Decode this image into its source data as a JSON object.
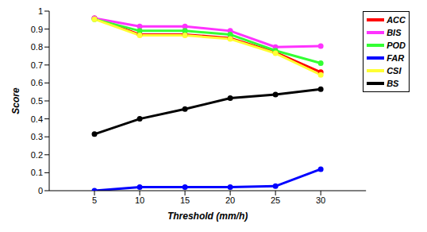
{
  "chart_data": {
    "type": "line",
    "x_label": "Threshold (mm/h)",
    "y_label": "Score",
    "x": [
      5,
      10,
      15,
      20,
      25,
      30
    ],
    "xlim": [
      0,
      35
    ],
    "xticks": [
      5,
      10,
      15,
      20,
      25,
      30
    ],
    "ylim": [
      0,
      1
    ],
    "yticks": [
      0,
      0.1,
      0.2,
      0.3,
      0.4,
      0.5,
      0.6,
      0.7,
      0.8,
      0.9,
      1
    ],
    "grid": false,
    "legend": "top-right",
    "marker": "circle",
    "series": [
      {
        "name": "ACC",
        "color": "#ff0000",
        "values": [
          0.96,
          0.87,
          0.87,
          0.85,
          0.77,
          0.66
        ]
      },
      {
        "name": "BIS",
        "color": "#ff33ff",
        "values": [
          0.96,
          0.915,
          0.915,
          0.89,
          0.8,
          0.805
        ]
      },
      {
        "name": "POD",
        "color": "#33ff33",
        "values": [
          0.955,
          0.89,
          0.89,
          0.87,
          0.78,
          0.71
        ]
      },
      {
        "name": "FAR",
        "color": "#0000ff",
        "values": [
          0,
          0.02,
          0.02,
          0.02,
          0.025,
          0.12
        ]
      },
      {
        "name": "CSI",
        "color": "#ffff33",
        "values": [
          0.955,
          0.865,
          0.865,
          0.845,
          0.765,
          0.645
        ]
      },
      {
        "name": "BS",
        "color": "#000000",
        "values": [
          0.315,
          0.4,
          0.455,
          0.515,
          0.535,
          0.565
        ]
      }
    ]
  }
}
